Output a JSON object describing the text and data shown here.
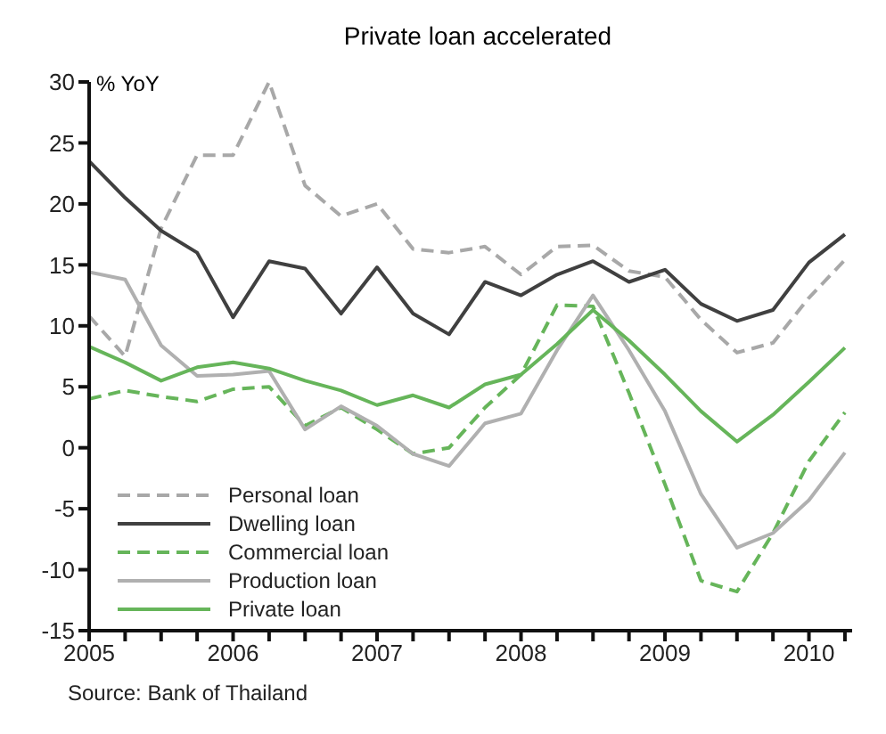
{
  "chart_data": {
    "type": "line",
    "title": "Private loan accelerated",
    "ylabel": "% YoY",
    "x": [
      2005,
      2005.25,
      2005.5,
      2005.75,
      2006,
      2006.25,
      2006.5,
      2006.75,
      2007,
      2007.25,
      2007.5,
      2007.75,
      2008,
      2008.25,
      2008.5,
      2008.75,
      2009,
      2009.25,
      2009.5,
      2009.75,
      2010,
      2010.25
    ],
    "series": [
      {
        "name": "Personal loan",
        "color": "#a8a8a8",
        "line_style": "dashed",
        "values": [
          10.8,
          7.5,
          18,
          24,
          24,
          30,
          21.5,
          19,
          20,
          16.3,
          16,
          16.5,
          14.2,
          16.5,
          16.6,
          14.5,
          14,
          10.5,
          7.8,
          8.6,
          12.3,
          15.4
        ]
      },
      {
        "name": "Dwelling loan",
        "color": "#404040",
        "line_style": "solid",
        "values": [
          23.5,
          20.5,
          17.8,
          16,
          10.7,
          15.3,
          14.7,
          11,
          14.8,
          11,
          9.3,
          13.6,
          12.5,
          14.2,
          15.3,
          13.6,
          14.6,
          11.8,
          10.4,
          11.3,
          15.2,
          17.5
        ]
      },
      {
        "name": "Commercial loan",
        "color": "#66b55a",
        "line_style": "dashed",
        "values": [
          4,
          4.7,
          4.2,
          3.8,
          4.8,
          5,
          1.8,
          3.3,
          1.5,
          -0.5,
          0,
          3.3,
          6,
          11.7,
          11.6,
          4.5,
          -3,
          -10.9,
          -11.8,
          -7,
          -1.1,
          2.9
        ]
      },
      {
        "name": "Production loan",
        "color": "#b0b0b0",
        "line_style": "solid",
        "values": [
          14.4,
          13.8,
          8.4,
          5.9,
          6,
          6.3,
          1.5,
          3.4,
          1.8,
          -0.5,
          -1.5,
          2,
          2.8,
          8,
          12.5,
          8,
          3,
          -3.8,
          -8.2,
          -7,
          -4.3,
          -0.4
        ]
      },
      {
        "name": "Private loan",
        "color": "#66b55a",
        "line_style": "solid",
        "values": [
          8.3,
          7,
          5.5,
          6.6,
          7,
          6.5,
          5.5,
          4.7,
          3.5,
          4.3,
          3.3,
          5.2,
          6,
          8.5,
          11.3,
          8.8,
          6,
          3,
          0.5,
          2.7,
          5.4,
          8.2
        ]
      }
    ],
    "xlim": [
      2005,
      2010.3
    ],
    "xticks": [
      2005,
      {
        "value": 2005.25,
        "label": null
      },
      {
        "value": 2005.5,
        "label": null
      },
      {
        "value": 2005.75,
        "label": null
      },
      2006,
      {
        "value": 2006.25,
        "label": null
      },
      {
        "value": 2006.5,
        "label": null
      },
      {
        "value": 2006.75,
        "label": null
      },
      2007,
      {
        "value": 2007.25,
        "label": null
      },
      {
        "value": 2007.5,
        "label": null
      },
      {
        "value": 2007.75,
        "label": null
      },
      2008,
      {
        "value": 2008.25,
        "label": null
      },
      {
        "value": 2008.5,
        "label": null
      },
      {
        "value": 2008.75,
        "label": null
      },
      2009,
      {
        "value": 2009.25,
        "label": null
      },
      {
        "value": 2009.5,
        "label": null
      },
      {
        "value": 2009.75,
        "label": null
      },
      2010,
      {
        "value": 2010.25,
        "label": null
      }
    ],
    "ylim": [
      -15,
      30
    ],
    "yticks": [
      -15,
      -10,
      -5,
      0,
      5,
      10,
      15,
      20,
      25,
      30
    ],
    "grid": false,
    "legend": "bottom left",
    "marker": "none",
    "annotations": [
      "Source: Bank of Thailand"
    ]
  }
}
